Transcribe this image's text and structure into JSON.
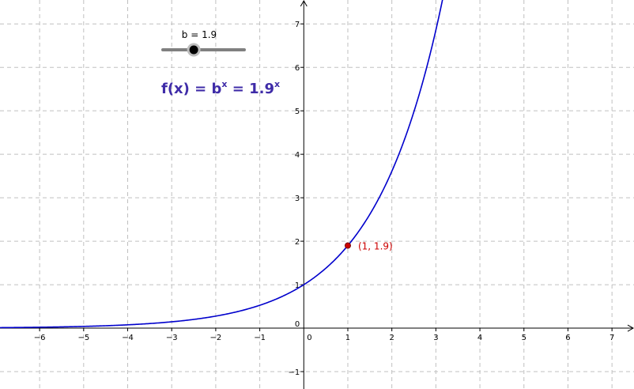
{
  "slider": {
    "label": "b = 1.9",
    "value": 1.9,
    "min": 0,
    "max": 5
  },
  "formula": {
    "lhs": "f(x) = b",
    "exp1": "x",
    "mid": " = 1.9",
    "exp2": "x"
  },
  "point": {
    "label": "(1, 1.9)",
    "x": 1,
    "y": 1.9
  },
  "colors": {
    "curve": "#0000cc",
    "formula": "#3f2ca8",
    "point": "#cc0000",
    "point_label": "#cc0000"
  },
  "chart_data": {
    "type": "line",
    "xlim": [
      -6.9,
      7.5
    ],
    "ylim": [
      -1.4,
      7.55
    ],
    "grid": true,
    "x_ticks": [
      "-6",
      "-5",
      "-4",
      "-3",
      "-2",
      "-1",
      "0",
      "1",
      "2",
      "3",
      "4",
      "5",
      "6",
      "7"
    ],
    "y_ticks": [
      "-1",
      "0",
      "1",
      "2",
      "3",
      "4",
      "5",
      "6",
      "7"
    ],
    "series": [
      {
        "function_base": 1.9
      }
    ]
  }
}
